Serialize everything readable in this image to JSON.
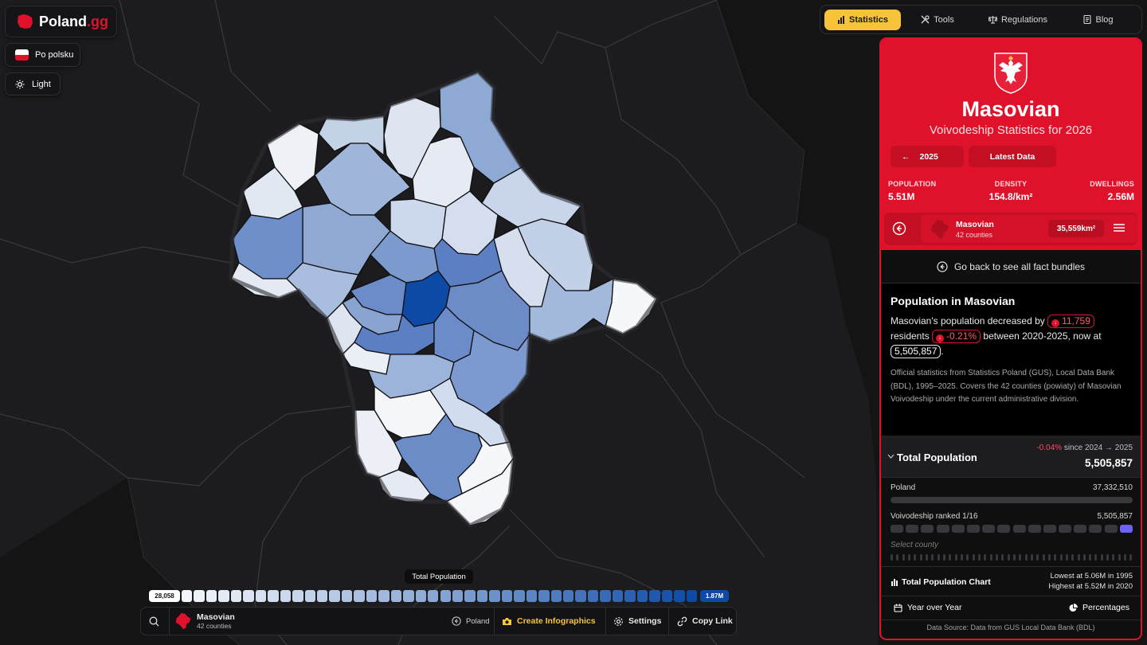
{
  "app": {
    "logo_text": "Poland",
    "logo_suffix": ".gg",
    "language_button": "Po polsku",
    "theme_button": "Light"
  },
  "nav": {
    "items": [
      "Statistics",
      "Tools",
      "Regulations",
      "Blog"
    ],
    "active": "Statistics"
  },
  "panel": {
    "region_name": "Masovian",
    "subtitle": "Voivodeship Statistics for 2026",
    "prev_year_button": "2025",
    "latest_button": "Latest Data",
    "stats": [
      {
        "label": "POPULATION",
        "value": "5.51M"
      },
      {
        "label": "DENSITY",
        "value": "154.8/km²"
      },
      {
        "label": "DWELLINGS",
        "value": "2.56M"
      }
    ],
    "region_card": {
      "name": "Masovian",
      "counties": "42 counties",
      "area": "35,559km²"
    },
    "go_back": "Go back to see all fact bundles",
    "fact": {
      "title": "Population in Masovian",
      "text_1": "Masovian's population decreased by",
      "decrease_value": "11,759",
      "text_2": "residents",
      "decrease_pct": "-0.21%",
      "text_3": "between 2020-2025, now at",
      "current_value": "5,505,857",
      "text_4": ".",
      "note": "Official statistics from Statistics Poland (GUS), Local Data Bank (BDL), 1995–2025. Covers the 42 counties (powiaty) of Masovian Voivodeship under the current administrative division."
    },
    "total_population": {
      "title": "Total Population",
      "change_pct": "-0.04%",
      "change_text": "since 2024 → 2025",
      "value": "5,505,857",
      "poland_label": "Poland",
      "poland_value": "37,332,510",
      "rank_label": "Voivodeship ranked 1/16",
      "rank_value": "5,505,857",
      "rank_position": 16,
      "rank_total": 16,
      "select_county": "Select county",
      "county_count": 42
    },
    "chart_row": {
      "title": "Total Population Chart",
      "lowest": "Lowest at 5.06M in 1995",
      "highest": "Highest at 5.52M in 2020"
    },
    "tabs": [
      "Year over Year",
      "Percentages"
    ],
    "source": "Data Source: Data from GUS Local Data Bank (BDL)"
  },
  "legend": {
    "title": "Total Population",
    "min_label": "28,058",
    "max_label": "1.87M",
    "steps": 42,
    "color_low": "#f2f5fa",
    "color_high": "#0d4aa6"
  },
  "bottom": {
    "region_name": "Masovian",
    "region_counties": "42 counties",
    "poland_button": "Poland",
    "infographics_button": "Create Infographics",
    "settings_button": "Settings",
    "copy_link_button": "Copy Link"
  },
  "colors": {
    "brand_red": "#e0112b",
    "accent_yellow": "#f7c33a",
    "map_high": "#0d4aa6"
  }
}
